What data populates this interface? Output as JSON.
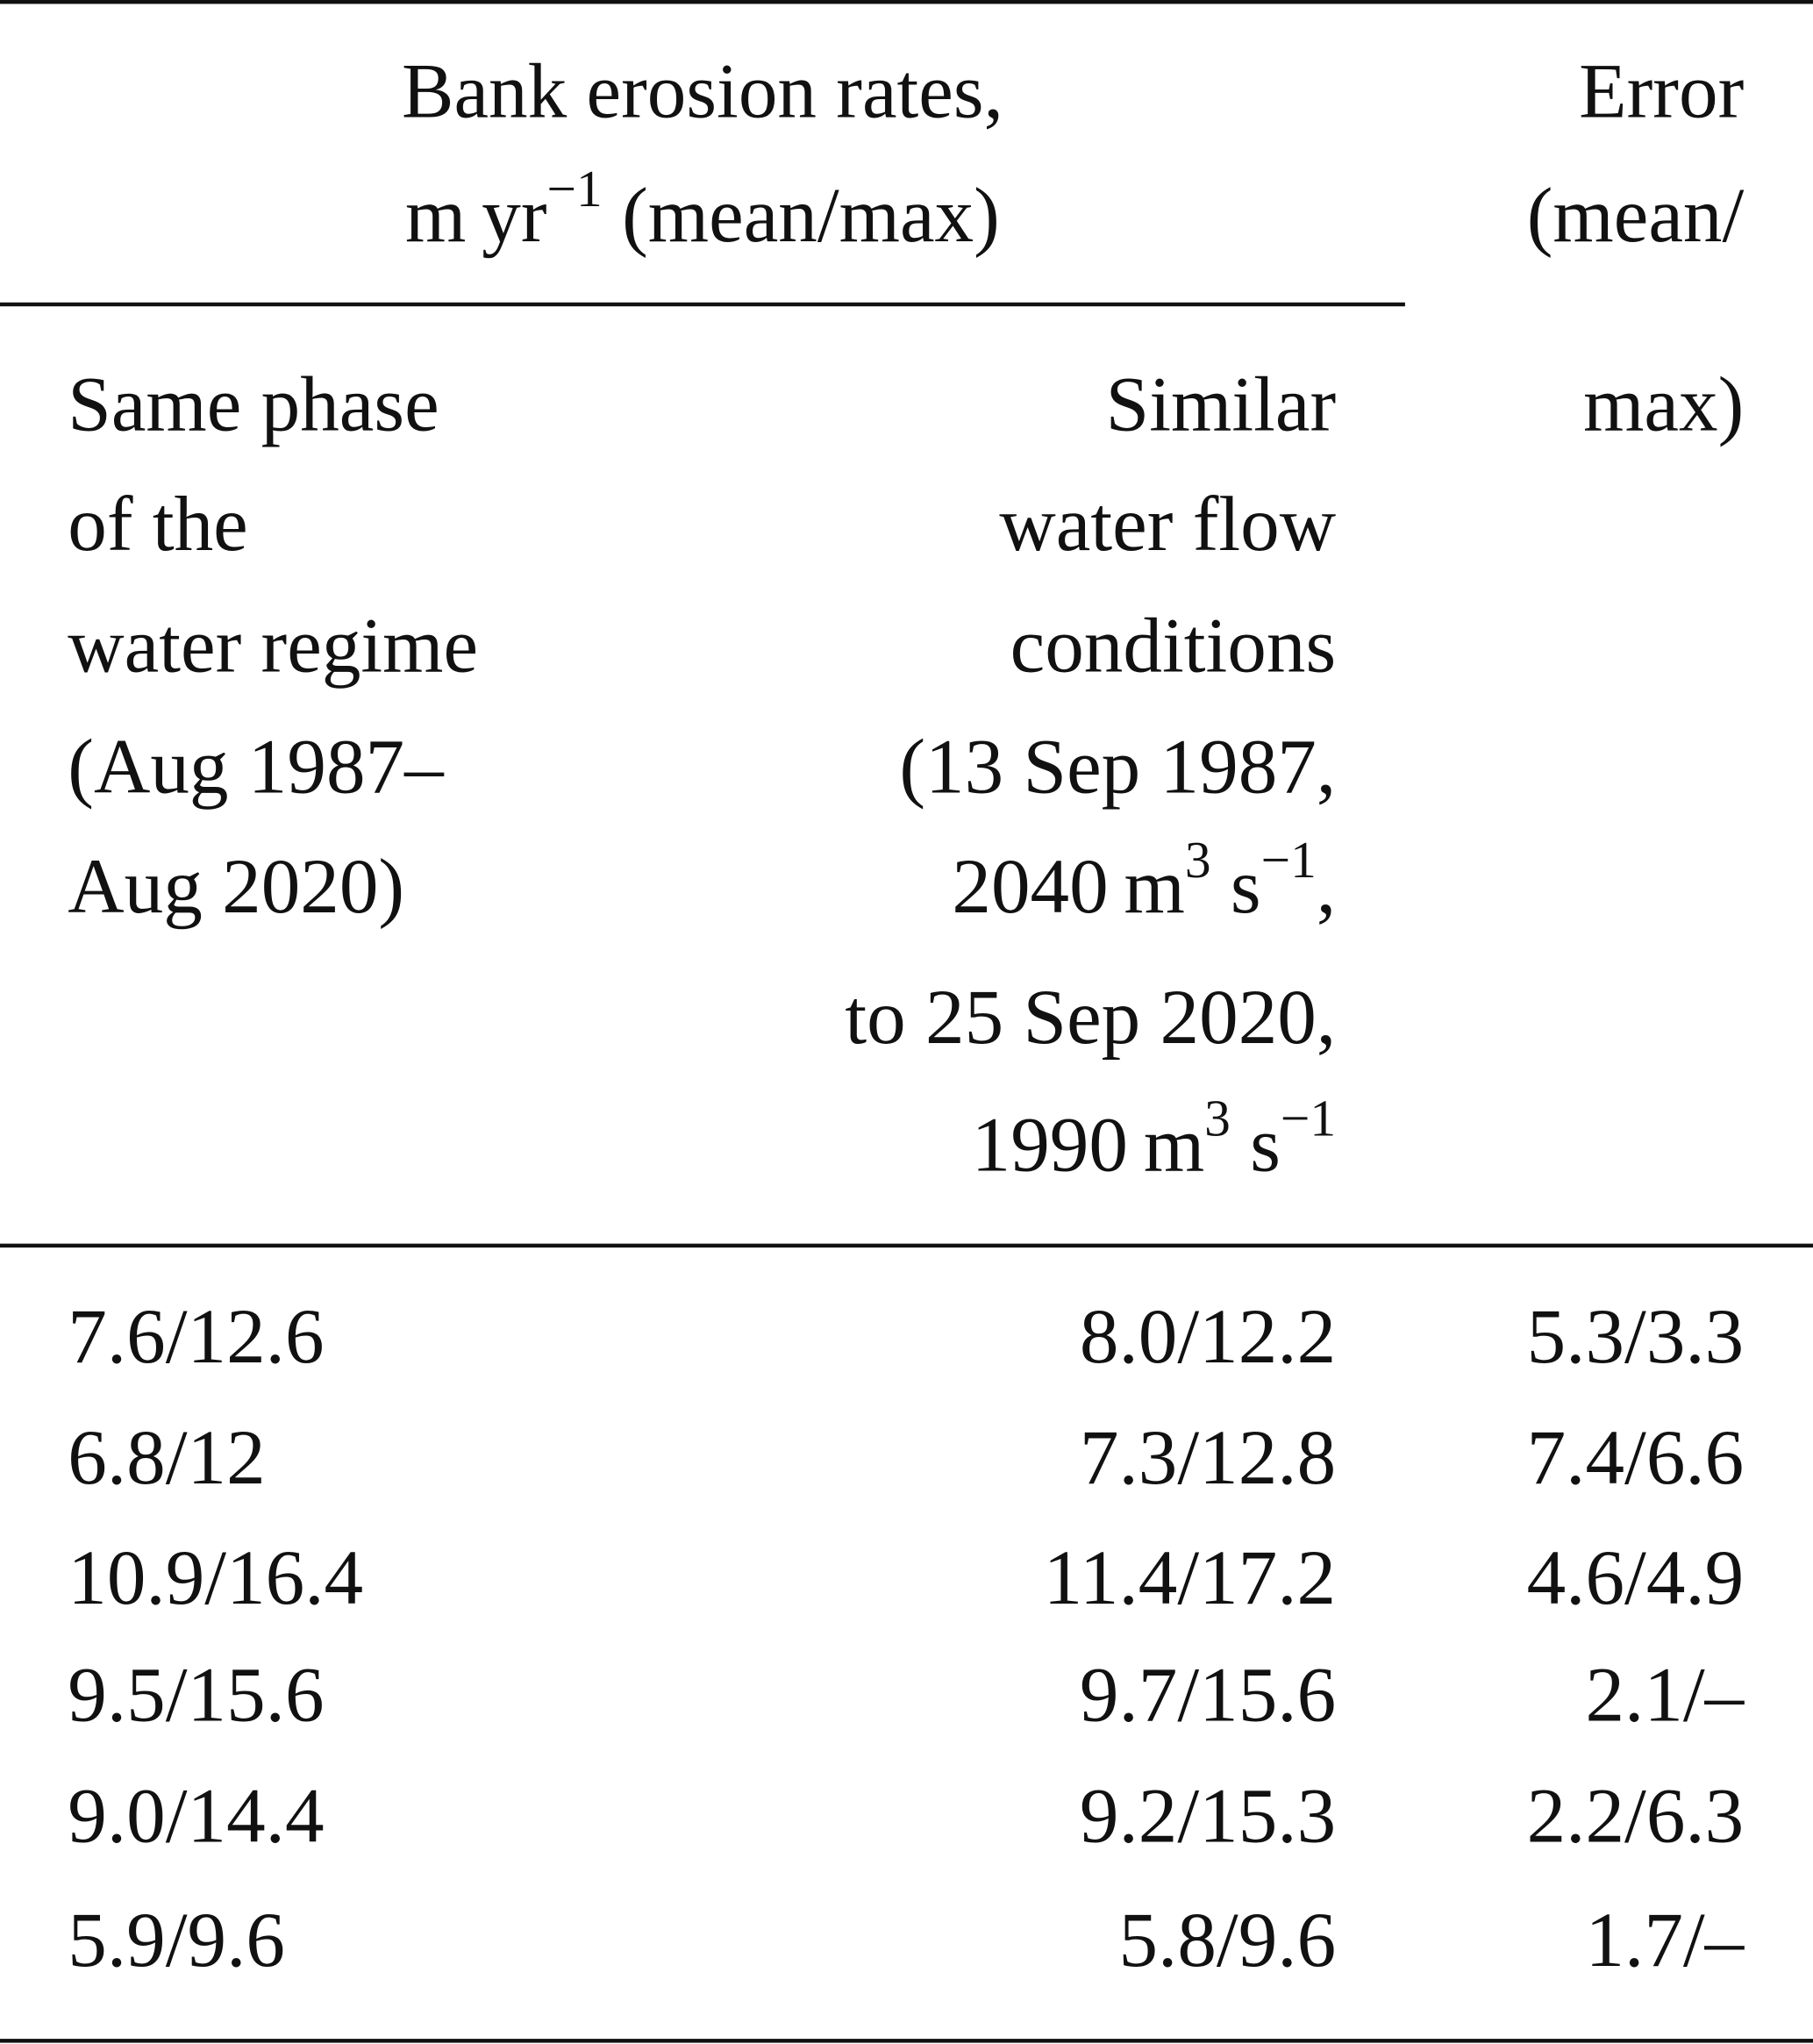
{
  "table": {
    "header": {
      "group": [
        [
          {
            "text": "Bank erosion rates,"
          }
        ],
        [
          {
            "text": "m yr",
            "sup": "−1"
          },
          {
            "text": " (mean/max)"
          }
        ]
      ],
      "col1": [
        [
          {
            "text": "Same phase"
          }
        ],
        [
          {
            "text": "of the"
          }
        ],
        [
          {
            "text": "water regime"
          }
        ],
        [
          {
            "text": "(Aug 1987–"
          }
        ],
        [
          {
            "text": "Aug 2020)"
          }
        ]
      ],
      "col2": [
        [
          {
            "text": "Similar"
          }
        ],
        [
          {
            "text": "water flow"
          }
        ],
        [
          {
            "text": "conditions"
          }
        ],
        [
          {
            "text": "(13 Sep 1987,"
          }
        ],
        [
          {
            "text": "2040 m",
            "sup": "3"
          },
          {
            "text": " s",
            "sup": "−1"
          },
          {
            "text": ","
          }
        ],
        [
          {
            "text": "to 25 Sep 2020,"
          }
        ],
        [
          {
            "text": "1990 m",
            "sup": "3"
          },
          {
            "text": " s",
            "sup": "−1"
          }
        ]
      ],
      "col3": [
        [
          {
            "text": "Error"
          }
        ],
        [
          {
            "text": "(mean/"
          }
        ],
        [
          {
            "text": "max)"
          }
        ]
      ]
    },
    "rows": [
      [
        "7.6/12.6",
        "8.0/12.2",
        "5.3/3.3"
      ],
      [
        "6.8/12",
        "7.3/12.8",
        "7.4/6.6"
      ],
      [
        "10.9/16.4",
        "11.4/17.2",
        "4.6/4.9"
      ],
      [
        "9.5/15.6",
        "9.7/15.6",
        "2.1/–"
      ],
      [
        "9.0/14.4",
        "9.2/15.3",
        "2.2/6.3"
      ],
      [
        "5.9/9.6",
        "5.8/9.6",
        "1.7/–"
      ]
    ]
  }
}
